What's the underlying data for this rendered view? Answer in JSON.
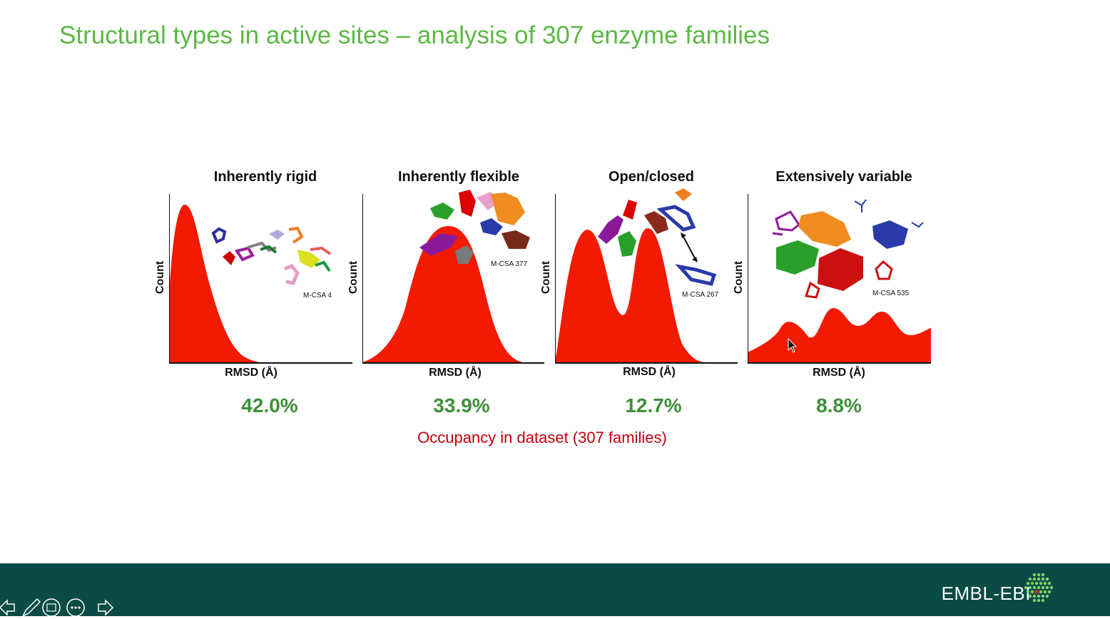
{
  "slide": {
    "title": "Structural types in active sites – analysis of 307 enzyme families",
    "occupancy_note": "Occupancy in dataset (307 families)"
  },
  "panels": [
    {
      "title": "Inherently rigid",
      "ylabel": "Count",
      "xlabel": "RMSD (Å)",
      "example": "M-CSA 4",
      "occupancy": "42.0%",
      "fill_color": "#f21a00"
    },
    {
      "title": "Inherently flexible",
      "ylabel": "Count",
      "xlabel": "RMSD (Å)",
      "example": "M-CSA 377",
      "occupancy": "33.9%",
      "fill_color": "#f21a00"
    },
    {
      "title": "Open/closed",
      "ylabel": "Count",
      "xlabel": "RMSD (Å)",
      "example": "M-CSA 267",
      "occupancy": "12.7%",
      "fill_color": "#f21a00"
    },
    {
      "title": "Extensively variable",
      "ylabel": "Count",
      "xlabel": "RMSD (Å)",
      "example": "M-CSA 535",
      "occupancy": "8.8%",
      "fill_color": "#f21a00"
    }
  ],
  "footer": {
    "logo_text": "EMBL-EBI",
    "background": "#0b4b46"
  },
  "presenter_controls": [
    "previous-arrow-icon",
    "pen-icon",
    "slides-grid-icon",
    "more-options-icon",
    "next-arrow-icon"
  ],
  "colors": {
    "title_green": "#5cb845",
    "percent_green": "#3f8f3a",
    "occupancy_red": "#c4000d",
    "curve_red": "#f21a00"
  }
}
